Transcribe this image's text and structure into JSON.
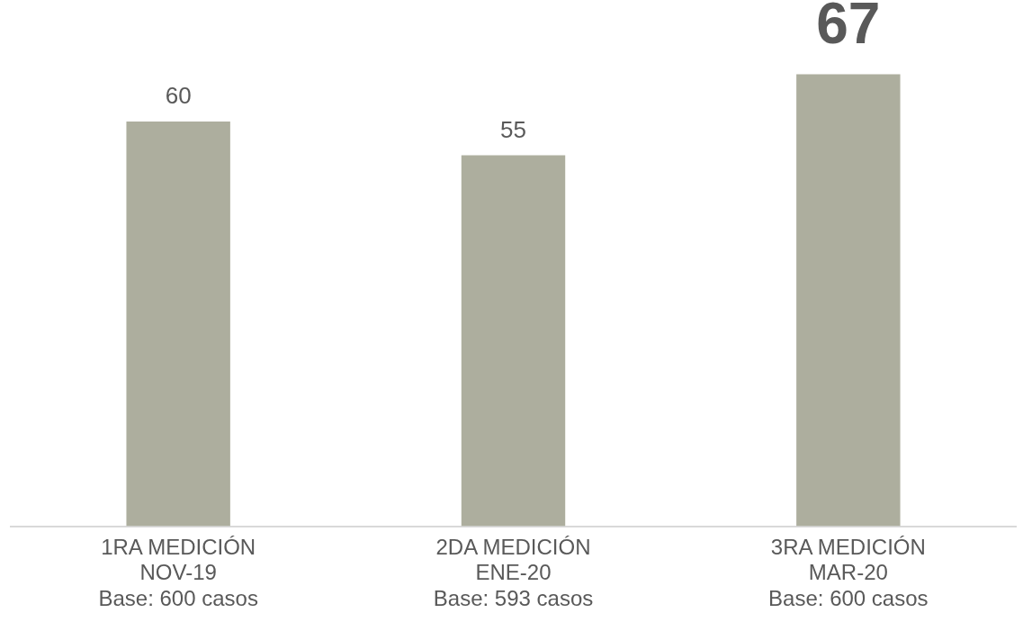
{
  "chart_data": {
    "type": "bar",
    "categories": [
      "1RA MEDICIÓN\nNOV-19\nBase: 600 casos",
      "2DA MEDICIÓN\nENE-20\nBase: 593 casos",
      "3RA MEDICIÓN\nMAR-20\nBase: 600 casos"
    ],
    "values": [
      60,
      55,
      67
    ],
    "color": "#adae9e",
    "data_labels": true,
    "grid": false,
    "legend": false,
    "tick_labels": "x"
  }
}
